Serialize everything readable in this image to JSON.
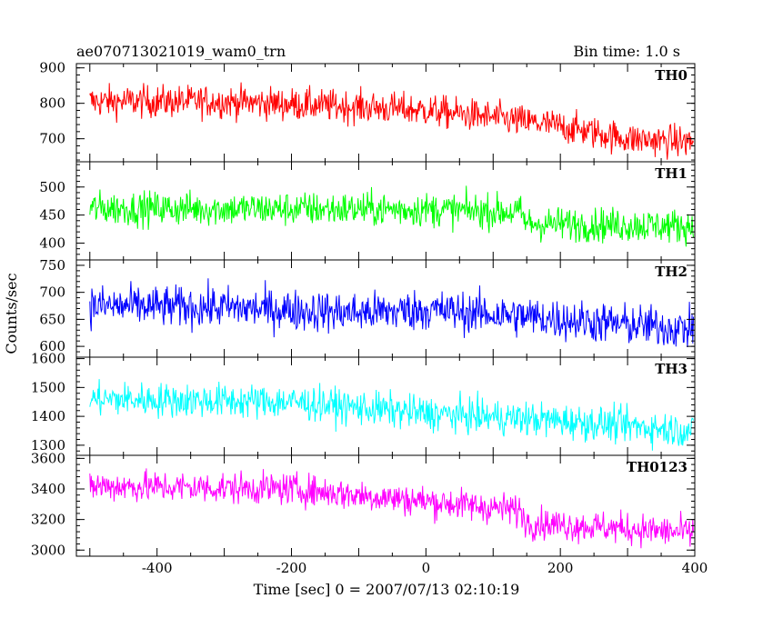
{
  "header": {
    "title": "ae070713021019_wam0_trn",
    "bin_time": "Bin time: 1.0 s"
  },
  "chart_data": {
    "type": "line",
    "xlabel": "Time [sec] 0 = 2007/07/13 02:10:19",
    "ylabel": "Counts/sec",
    "xlim": [
      -520,
      400
    ],
    "xticks": [
      -400,
      -200,
      0,
      200,
      400
    ],
    "x_start": -500,
    "x_end": 398,
    "bin_seconds": 1.0,
    "panels": [
      {
        "name": "TH0",
        "color": "#ff0000",
        "ylim": [
          635,
          912
        ],
        "yticks": [
          700,
          800,
          900
        ],
        "level_points": [
          [
            -500,
            805
          ],
          [
            -300,
            805
          ],
          [
            -100,
            790
          ],
          [
            0,
            780
          ],
          [
            100,
            760
          ],
          [
            200,
            735
          ],
          [
            300,
            700
          ],
          [
            398,
            690
          ]
        ],
        "noise": 42
      },
      {
        "name": "TH1",
        "color": "#00ff00",
        "ylim": [
          370,
          545
        ],
        "yticks": [
          400,
          450,
          500
        ],
        "level_points": [
          [
            -500,
            462
          ],
          [
            0,
            460
          ],
          [
            140,
            455
          ],
          [
            150,
            435
          ],
          [
            398,
            430
          ]
        ],
        "noise": 28
      },
      {
        "name": "TH2",
        "color": "#0000ff",
        "ylim": [
          580,
          760
        ],
        "yticks": [
          600,
          650,
          700,
          750
        ],
        "level_points": [
          [
            -500,
            675
          ],
          [
            -300,
            672
          ],
          [
            -100,
            662
          ],
          [
            0,
            668
          ],
          [
            150,
            655
          ],
          [
            300,
            640
          ],
          [
            398,
            632
          ]
        ],
        "noise": 35
      },
      {
        "name": "TH3",
        "color": "#00ffff",
        "ylim": [
          1265,
          1605
        ],
        "yticks": [
          1300,
          1400,
          1500,
          1600
        ],
        "level_points": [
          [
            -500,
            1460
          ],
          [
            -200,
            1450
          ],
          [
            0,
            1410
          ],
          [
            200,
            1385
          ],
          [
            398,
            1350
          ]
        ],
        "noise": 55
      },
      {
        "name": "TH0123",
        "color": "#ff00ff",
        "ylim": [
          2960,
          3620
        ],
        "yticks": [
          3000,
          3200,
          3400,
          3600
        ],
        "level_points": [
          [
            -500,
            3420
          ],
          [
            -200,
            3400
          ],
          [
            0,
            3320
          ],
          [
            140,
            3260
          ],
          [
            150,
            3180
          ],
          [
            300,
            3140
          ],
          [
            398,
            3110
          ]
        ],
        "noise": 95
      }
    ]
  }
}
